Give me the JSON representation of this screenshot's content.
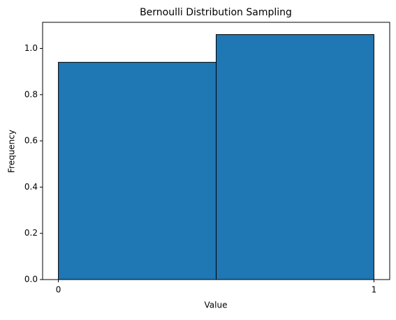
{
  "chart_data": {
    "type": "histogram",
    "title": "Bernoulli Distribution Sampling",
    "x_label": "Value",
    "y_label": "Frequency",
    "bins": [
      0,
      0.5,
      1
    ],
    "values": [
      0.94,
      1.06
    ],
    "color": "#1f77b4",
    "edgecolor": "#000000",
    "xlim": [
      -0.05,
      1.05
    ],
    "xticks": [
      0,
      1
    ],
    "ylim": [
      0,
      1.113
    ],
    "yticks": [
      {
        "value": 0,
        "label": "0.0"
      },
      {
        "value": 0.2,
        "label": "0.2"
      },
      {
        "value": 0.4,
        "label": "0.4"
      },
      {
        "value": 0.6,
        "label": "0.6"
      },
      {
        "value": 0.8,
        "label": "0.8"
      },
      {
        "value": 1.0,
        "label": "1.0"
      }
    ]
  }
}
